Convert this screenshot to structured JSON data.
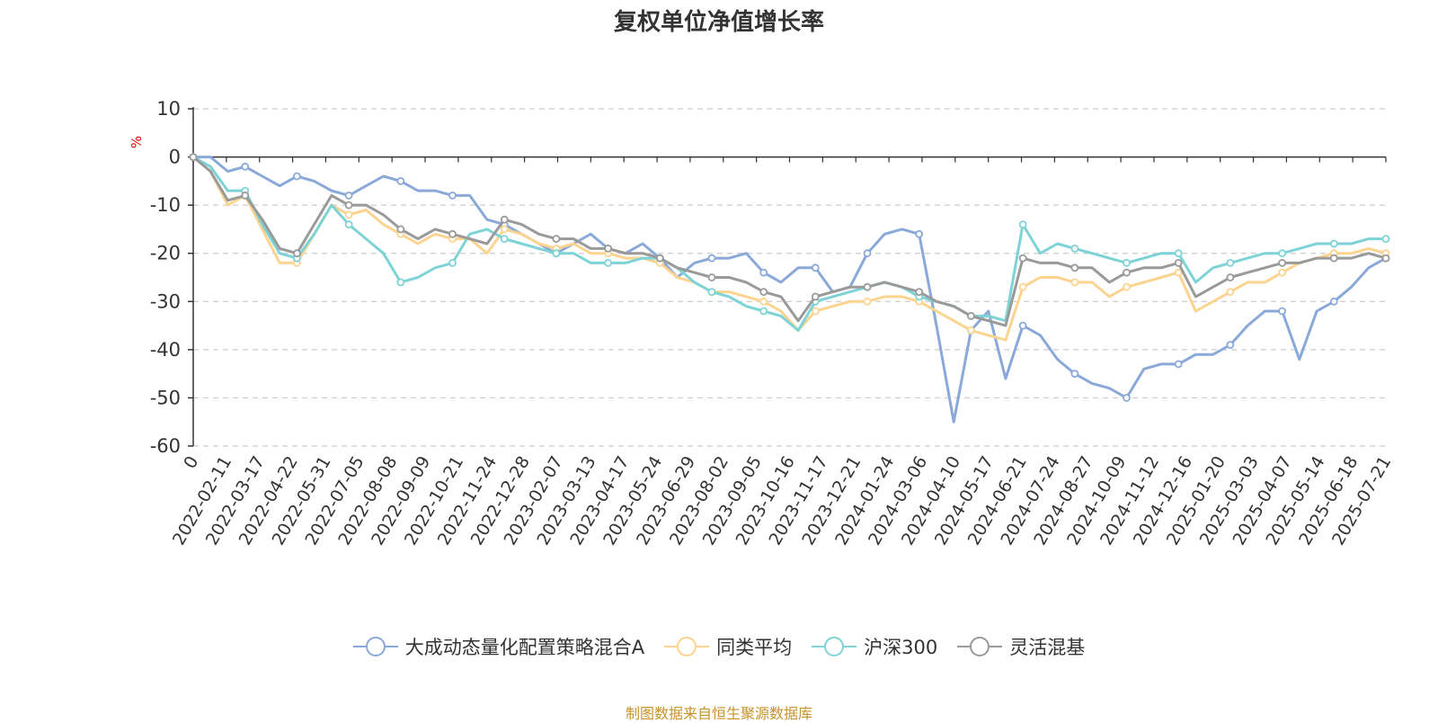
{
  "chart_data": {
    "type": "line",
    "title": "复权单位净值增长率",
    "ylabel": "%",
    "ylim": [
      -60,
      10
    ],
    "yticks": [
      "10",
      "0",
      "-10",
      "-20",
      "-30",
      "-40",
      "-50",
      "-60"
    ],
    "x_tick_labels": [
      "0",
      "2022-02-11",
      "2022-03-17",
      "2022-04-22",
      "2022-05-31",
      "2022-07-05",
      "2022-08-08",
      "2022-09-09",
      "2022-10-21",
      "2022-11-24",
      "2022-12-28",
      "2023-02-07",
      "2023-03-13",
      "2023-04-17",
      "2023-05-24",
      "2023-06-29",
      "2023-08-02",
      "2023-09-05",
      "2023-10-16",
      "2023-11-17",
      "2023-12-21",
      "2024-01-24",
      "2024-03-06",
      "2024-04-10",
      "2024-05-17",
      "2024-06-21",
      "2024-07-24",
      "2024-08-27",
      "2024-10-09",
      "2024-11-12",
      "2024-12-16",
      "2025-01-20",
      "2025-03-03",
      "2025-04-07",
      "2025-05-14",
      "2025-06-18",
      "2025-07-21"
    ],
    "grid": true,
    "legend_position": "bottom",
    "series": [
      {
        "name": "大成动态量化配置策略混合A",
        "color": "#8aa9d8",
        "values": [
          0,
          0,
          -3,
          -2,
          -4,
          -6,
          -4,
          -5,
          -7,
          -8,
          -6,
          -4,
          -5,
          -7,
          -7,
          -8,
          -8,
          -13,
          -14,
          -16,
          -18,
          -20,
          -18,
          -16,
          -19,
          -20,
          -18,
          -21,
          -25,
          -22,
          -21,
          -21,
          -20,
          -24,
          -26,
          -23,
          -23,
          -28,
          -27,
          -20,
          -16,
          -15,
          -16,
          -35,
          -55,
          -36,
          -32,
          -46,
          -35,
          -37,
          -42,
          -45,
          -47,
          -48,
          -50,
          -44,
          -43,
          -43,
          -41,
          -41,
          -39,
          -35,
          -32,
          -32,
          -42,
          -32,
          -30,
          -27,
          -23,
          -21
        ]
      },
      {
        "name": "同类平均",
        "color": "#fcd48f",
        "values": [
          0,
          -3,
          -10,
          -8,
          -15,
          -22,
          -22,
          -16,
          -10,
          -12,
          -11,
          -14,
          -16,
          -18,
          -16,
          -17,
          -17,
          -20,
          -15,
          -16,
          -18,
          -19,
          -18,
          -20,
          -20,
          -21,
          -21,
          -22,
          -25,
          -26,
          -28,
          -28,
          -29,
          -30,
          -32,
          -36,
          -32,
          -31,
          -30,
          -30,
          -29,
          -29,
          -30,
          -32,
          -34,
          -36,
          -37,
          -38,
          -27,
          -25,
          -25,
          -26,
          -26,
          -29,
          -27,
          -26,
          -25,
          -24,
          -32,
          -30,
          -28,
          -26,
          -26,
          -24,
          -22,
          -21,
          -20,
          -20,
          -19,
          -20
        ]
      },
      {
        "name": "沪深300",
        "color": "#7dd3d6",
        "values": [
          0,
          -2,
          -7,
          -7,
          -14,
          -20,
          -21,
          -16,
          -10,
          -14,
          -17,
          -20,
          -26,
          -25,
          -23,
          -22,
          -16,
          -15,
          -17,
          -18,
          -19,
          -20,
          -20,
          -22,
          -22,
          -22,
          -21,
          -21,
          -23,
          -26,
          -28,
          -29,
          -31,
          -32,
          -33,
          -36,
          -30,
          -29,
          -28,
          -27,
          -26,
          -27,
          -29,
          -30,
          -31,
          -33,
          -33,
          -34,
          -14,
          -20,
          -18,
          -19,
          -20,
          -21,
          -22,
          -21,
          -20,
          -20,
          -26,
          -23,
          -22,
          -21,
          -20,
          -20,
          -19,
          -18,
          -18,
          -18,
          -17,
          -17
        ]
      },
      {
        "name": "灵活混基",
        "color": "#9a9a9a",
        "values": [
          0,
          -3,
          -9,
          -8,
          -13,
          -19,
          -20,
          -14,
          -8,
          -10,
          -10,
          -12,
          -15,
          -17,
          -15,
          -16,
          -17,
          -18,
          -13,
          -14,
          -16,
          -17,
          -17,
          -19,
          -19,
          -20,
          -20,
          -21,
          -23,
          -24,
          -25,
          -25,
          -26,
          -28,
          -29,
          -34,
          -29,
          -28,
          -27,
          -27,
          -26,
          -27,
          -28,
          -30,
          -31,
          -33,
          -34,
          -35,
          -21,
          -22,
          -22,
          -23,
          -23,
          -26,
          -24,
          -23,
          -23,
          -22,
          -29,
          -27,
          -25,
          -24,
          -23,
          -22,
          -22,
          -21,
          -21,
          -21,
          -20,
          -21
        ]
      }
    ]
  },
  "source_note": "制图数据来自恒生聚源数据库"
}
